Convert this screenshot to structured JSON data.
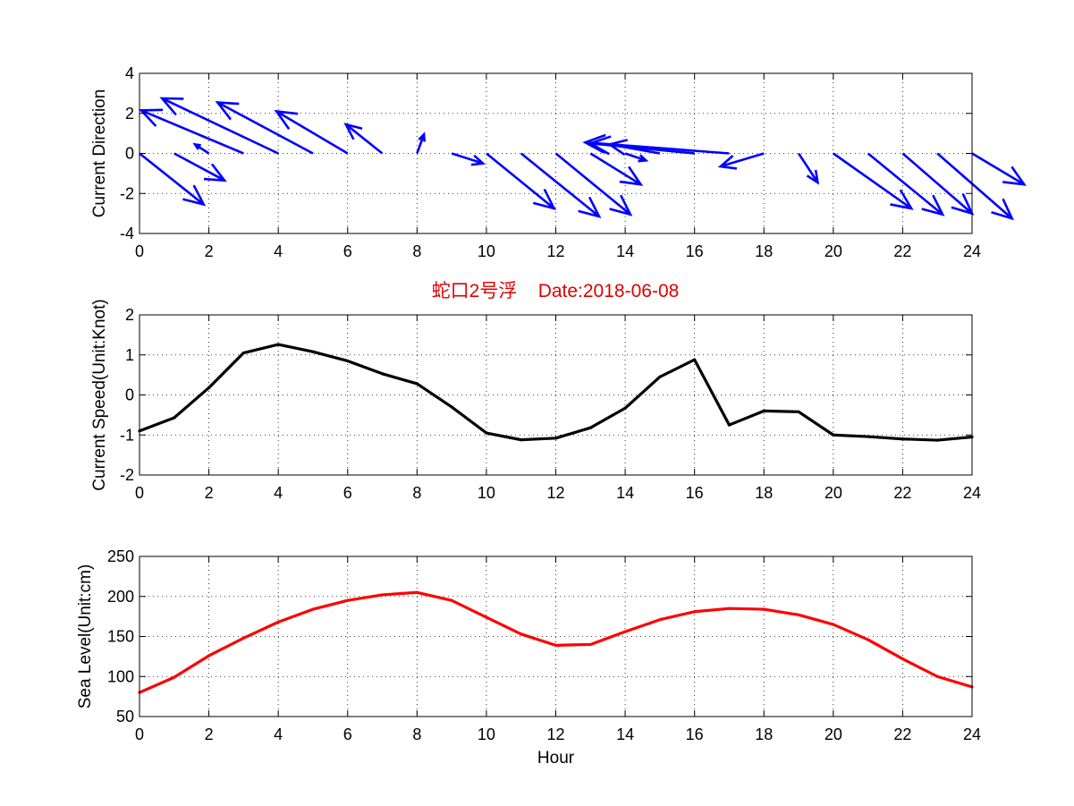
{
  "title": {
    "text": "蛇口2号浮    Date:2018-06-08",
    "color": "#e00000"
  },
  "chart_data": [
    {
      "type": "quiver",
      "ylabel": "Current Direction",
      "xlabel": "",
      "xlim": [
        0,
        24
      ],
      "ylim": [
        -4,
        4
      ],
      "xticks": [
        0,
        2,
        4,
        6,
        8,
        10,
        12,
        14,
        16,
        18,
        20,
        22,
        24
      ],
      "yticks": [
        -4,
        -2,
        0,
        2,
        4
      ],
      "grid": true,
      "color": "#0000ff",
      "arrows": [
        {
          "x": 0,
          "y": 0,
          "u": 1.85,
          "v": -2.55
        },
        {
          "x": 1,
          "y": 0,
          "u": 1.45,
          "v": -1.35
        },
        {
          "x": 2,
          "y": 0,
          "u": -0.4,
          "v": 0.45
        },
        {
          "x": 3,
          "y": 0,
          "u": -2.95,
          "v": 2.15
        },
        {
          "x": 4,
          "y": 0,
          "u": -3.35,
          "v": 2.75
        },
        {
          "x": 5,
          "y": 0,
          "u": -2.75,
          "v": 2.55
        },
        {
          "x": 6,
          "y": 0,
          "u": -2.05,
          "v": 2.1
        },
        {
          "x": 7,
          "y": 0,
          "u": -1.05,
          "v": 1.45
        },
        {
          "x": 8,
          "y": 0,
          "u": 0.2,
          "v": 0.95
        },
        {
          "x": 9,
          "y": 0,
          "u": 0.9,
          "v": -0.5
        },
        {
          "x": 10,
          "y": 0,
          "u": 1.95,
          "v": -2.75
        },
        {
          "x": 11,
          "y": 0,
          "u": 2.25,
          "v": -3.15
        },
        {
          "x": 12,
          "y": 0,
          "u": 2.15,
          "v": -3.05
        },
        {
          "x": 13,
          "y": 0,
          "u": 1.45,
          "v": -1.55
        },
        {
          "x": 14,
          "y": 0,
          "u": 0.6,
          "v": -0.35
        },
        {
          "x": 15,
          "y": 0,
          "u": -1.45,
          "v": 0.45
        },
        {
          "x": 16,
          "y": 0,
          "u": -3.0,
          "v": 0.5
        },
        {
          "x": 17,
          "y": 0,
          "u": -4.15,
          "v": 0.55
        },
        {
          "x": 18,
          "y": 0,
          "u": -1.25,
          "v": -0.65
        },
        {
          "x": 19,
          "y": 0,
          "u": 0.55,
          "v": -1.45
        },
        {
          "x": 20,
          "y": 0,
          "u": 2.25,
          "v": -2.75
        },
        {
          "x": 21,
          "y": 0,
          "u": 2.15,
          "v": -3.05
        },
        {
          "x": 22,
          "y": 0,
          "u": 2.0,
          "v": -3.0
        },
        {
          "x": 23,
          "y": 0,
          "u": 2.15,
          "v": -3.25
        },
        {
          "x": 24,
          "y": 0,
          "u": 1.5,
          "v": -1.55
        }
      ]
    },
    {
      "type": "line",
      "ylabel": "Current Speed(Unit:Knot)",
      "xlabel": "",
      "xlim": [
        0,
        24
      ],
      "ylim": [
        -2,
        2
      ],
      "xticks": [
        0,
        2,
        4,
        6,
        8,
        10,
        12,
        14,
        16,
        18,
        20,
        22,
        24
      ],
      "yticks": [
        -2,
        -1,
        0,
        1,
        2
      ],
      "grid": true,
      "color": "#000000",
      "x": [
        0,
        1,
        2,
        3,
        4,
        5,
        6,
        7,
        8,
        9,
        10,
        11,
        12,
        13,
        14,
        15,
        16,
        17,
        18,
        19,
        20,
        21,
        22,
        23,
        24
      ],
      "y": [
        -0.9,
        -0.57,
        0.18,
        1.05,
        1.26,
        1.08,
        0.85,
        0.53,
        0.28,
        -0.3,
        -0.95,
        -1.12,
        -1.08,
        -0.82,
        -0.33,
        0.45,
        0.88,
        -0.75,
        -0.4,
        -0.42,
        -1.0,
        -1.04,
        -1.1,
        -1.13,
        -1.05
      ]
    },
    {
      "type": "line",
      "ylabel": "Sea Level(Unit:cm)",
      "xlabel": "Hour",
      "xlim": [
        0,
        24
      ],
      "ylim": [
        50,
        250
      ],
      "xticks": [
        0,
        2,
        4,
        6,
        8,
        10,
        12,
        14,
        16,
        18,
        20,
        22,
        24
      ],
      "yticks": [
        50,
        100,
        150,
        200,
        250
      ],
      "grid": true,
      "color": "#ff0000",
      "x": [
        0,
        1,
        2,
        3,
        4,
        5,
        6,
        7,
        8,
        9,
        10,
        11,
        12,
        13,
        14,
        15,
        16,
        17,
        18,
        19,
        20,
        21,
        22,
        23,
        24
      ],
      "y": [
        80,
        99,
        126,
        148,
        168,
        184,
        195,
        202,
        205,
        195,
        174,
        153,
        139,
        140,
        156,
        171,
        181,
        185,
        184,
        177,
        165,
        146,
        122,
        100,
        87
      ]
    }
  ]
}
